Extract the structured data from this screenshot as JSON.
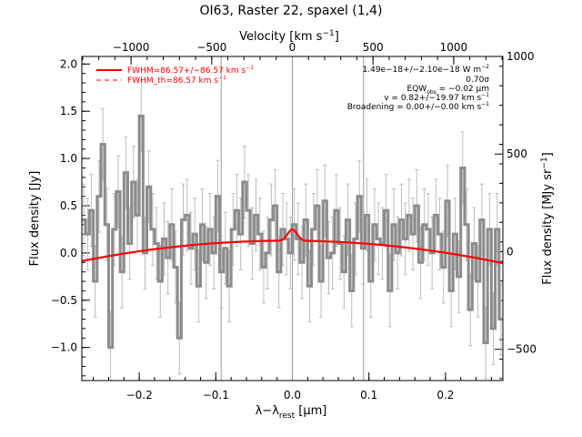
{
  "chart_data": {
    "type": "line",
    "title": "OI63, Raster 22, spaxel (1,4)",
    "xlabel": "λ−λ",
    "xlabel_sub": "rest",
    "xlabel_unit": " [μm]",
    "ylabel": "Flux density [Jy]",
    "top_xlabel": "Velocity [km s",
    "top_xlabel_exp": "−1",
    "right_ylabel": "Flux density [MJy sr",
    "right_ylabel_exp": "−1",
    "xlim": [
      -0.275,
      0.275
    ],
    "ylim": [
      -1.35,
      2.08
    ],
    "vlim": [
      -1305,
      1305
    ],
    "rlim": [
      -660,
      1000
    ],
    "grid": false,
    "xticks": [
      -0.2,
      -0.1,
      0.0,
      0.1,
      0.2
    ],
    "xtick_labels": [
      "−0.2",
      "−0.1",
      "0.0",
      "0.1",
      "0.2"
    ],
    "yticks": [
      -1.0,
      -0.5,
      0.0,
      0.5,
      1.0,
      1.5,
      2.0
    ],
    "ytick_labels": [
      "−1.0",
      "−0.5",
      "0.0",
      "0.5",
      "1.0",
      "1.5",
      "2.0"
    ],
    "vticks": [
      -1000,
      -500,
      0,
      500,
      1000
    ],
    "vtick_labels": [
      "−1000",
      "−500",
      "0",
      "500",
      "1000"
    ],
    "rticks": [
      -500,
      0,
      500,
      1000
    ],
    "rtick_labels": [
      "−500",
      "0",
      "500",
      "1000"
    ],
    "vlines": [
      -0.093,
      0.0,
      0.093
    ],
    "legend": {
      "placement": "top-left",
      "entries": [
        {
          "text": "FWHM=86.57+/−86.57 km s",
          "exp": "−1",
          "style": "solid",
          "color": "#ff0000"
        },
        {
          "text": "FWHM_th=86.57 km s",
          "exp": "−1",
          "style": "dashed",
          "color": "#ff0000"
        }
      ]
    },
    "annotations": [
      {
        "text": "1.49e−18+/−2.10e−18 W m",
        "exp": "−2"
      },
      {
        "text": "0.70σ"
      },
      {
        "text": "EQW",
        "sub": "obs",
        "tail": " = −0.02 μm"
      },
      {
        "text": "v = 0.82+/−19.97 km s",
        "exp": "−1"
      },
      {
        "text": "Broadening = 0.00+/−0.00 km s",
        "exp": "−1"
      }
    ],
    "series": [
      {
        "name": "spectrum",
        "color": "#8c8c8c",
        "style": "histogram",
        "x": [
          -0.275,
          -0.27,
          -0.265,
          -0.26,
          -0.255,
          -0.25,
          -0.245,
          -0.24,
          -0.235,
          -0.23,
          -0.225,
          -0.22,
          -0.215,
          -0.21,
          -0.205,
          -0.2,
          -0.195,
          -0.19,
          -0.185,
          -0.18,
          -0.175,
          -0.17,
          -0.165,
          -0.16,
          -0.155,
          -0.15,
          -0.145,
          -0.14,
          -0.135,
          -0.13,
          -0.125,
          -0.12,
          -0.115,
          -0.11,
          -0.105,
          -0.1,
          -0.095,
          -0.09,
          -0.085,
          -0.08,
          -0.075,
          -0.07,
          -0.065,
          -0.06,
          -0.055,
          -0.05,
          -0.045,
          -0.04,
          -0.035,
          -0.03,
          -0.025,
          -0.02,
          -0.015,
          -0.01,
          -0.005,
          0.0,
          0.005,
          0.01,
          0.015,
          0.02,
          0.025,
          0.03,
          0.035,
          0.04,
          0.045,
          0.05,
          0.055,
          0.06,
          0.065,
          0.07,
          0.075,
          0.08,
          0.085,
          0.09,
          0.095,
          0.1,
          0.105,
          0.11,
          0.115,
          0.12,
          0.125,
          0.13,
          0.135,
          0.14,
          0.145,
          0.15,
          0.155,
          0.16,
          0.165,
          0.17,
          0.175,
          0.18,
          0.185,
          0.19,
          0.195,
          0.2,
          0.205,
          0.21,
          0.215,
          0.22,
          0.225,
          0.23,
          0.235,
          0.24,
          0.245,
          0.25,
          0.255,
          0.26,
          0.265,
          0.27
        ],
        "y": [
          0.35,
          0.2,
          0.45,
          -0.3,
          0.6,
          1.15,
          0.3,
          -1.0,
          0.25,
          0.65,
          -0.2,
          0.85,
          0.1,
          0.75,
          0.4,
          1.45,
          0.0,
          0.7,
          0.25,
          0.1,
          -0.3,
          0.15,
          -0.05,
          0.3,
          -0.15,
          -0.9,
          0.35,
          0.4,
          0.05,
          0.2,
          -0.35,
          0.3,
          -0.1,
          0.25,
          0.0,
          0.6,
          -0.2,
          0.05,
          -0.35,
          0.25,
          0.45,
          0.2,
          0.75,
          0.45,
          0.1,
          0.4,
          0.2,
          -0.15,
          0.0,
          0.35,
          0.5,
          -0.2,
          0.25,
          0.15,
          0.0,
          0.3,
          0.15,
          -0.1,
          0.35,
          -0.35,
          0.25,
          0.5,
          -0.3,
          0.55,
          -0.05,
          0.0,
          0.45,
          0.1,
          -0.2,
          0.35,
          -0.4,
          0.15,
          0.6,
          0.05,
          0.4,
          -0.3,
          0.3,
          0.15,
          0.1,
          0.45,
          -0.4,
          0.3,
          0.0,
          0.35,
          0.15,
          0.4,
          0.2,
          0.5,
          -0.1,
          0.3,
          0.25,
          0.0,
          0.4,
          0.2,
          -0.15,
          0.55,
          -0.4,
          0.2,
          -0.25,
          0.9,
          0.3,
          -0.6,
          0.1,
          -0.3,
          0.35,
          -0.95,
          0.25,
          -0.8,
          0.25,
          -0.7
        ],
        "err": 0.38
      },
      {
        "name": "fit",
        "color": "#ff0000",
        "style": "solid",
        "continuum": [
          -0.04,
          0.13,
          -3.0
        ],
        "gaussian": {
          "center": 0.0,
          "amp": 0.12,
          "sigma": 0.006
        }
      }
    ]
  }
}
